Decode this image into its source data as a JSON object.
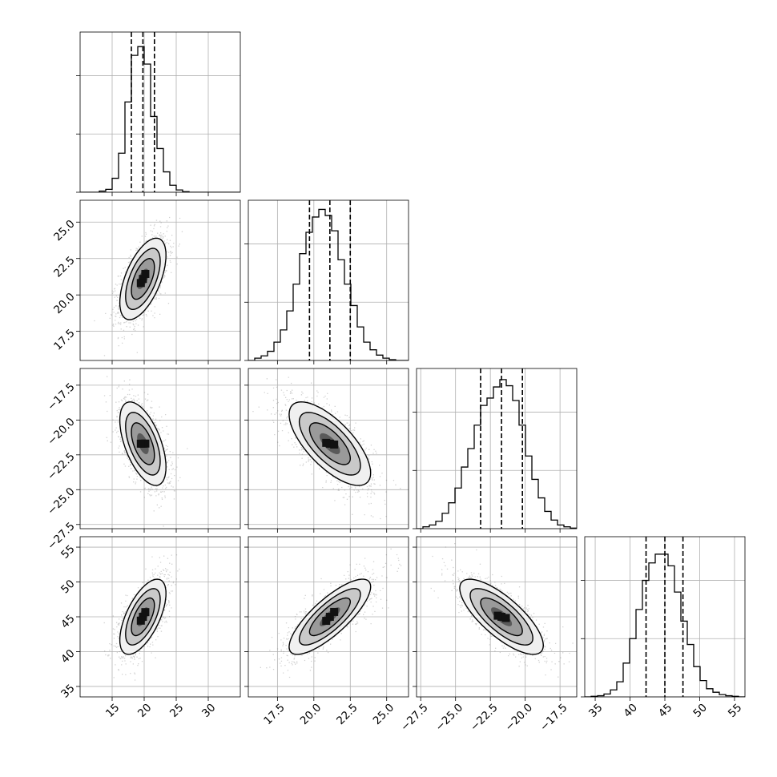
{
  "chart_data": {
    "type": "corner",
    "grid": true,
    "parameters": [
      {
        "id": "p1",
        "range": [
          10,
          35
        ],
        "ticks": [
          15,
          20,
          25,
          30
        ],
        "tick_labels": [
          "15",
          "20",
          "25",
          "30"
        ],
        "quantiles": [
          18.0,
          19.8,
          21.6
        ],
        "hist_bin_edges": [
          10,
          11,
          12,
          13,
          14,
          15,
          16,
          17,
          18,
          19,
          20,
          21,
          22,
          23,
          24,
          25,
          26,
          27,
          28,
          29,
          30,
          31,
          32,
          33,
          34,
          35
        ],
        "hist_counts": [
          0,
          0,
          0,
          2,
          5,
          24,
          67,
          155,
          235,
          250,
          220,
          130,
          75,
          35,
          12,
          4,
          1,
          0,
          0,
          0,
          0,
          0,
          0,
          0,
          0
        ],
        "hist_ylim": [
          0,
          275
        ]
      },
      {
        "id": "p2",
        "range": [
          15.5,
          26.5
        ],
        "ticks": [
          17.5,
          20.0,
          22.5,
          25.0
        ],
        "tick_labels": [
          "17.5",
          "20.0",
          "22.5",
          "25.0"
        ],
        "quantiles": [
          19.7,
          21.1,
          22.5
        ],
        "hist_bin_edges": [
          15.5,
          15.94,
          16.38,
          16.82,
          17.26,
          17.7,
          18.14,
          18.58,
          19.02,
          19.46,
          19.9,
          20.34,
          20.78,
          21.22,
          21.66,
          22.1,
          22.54,
          22.98,
          23.42,
          23.86,
          24.3,
          24.74,
          25.18,
          25.62,
          26.06,
          26.5
        ],
        "hist_counts": [
          0,
          3,
          6,
          12,
          24,
          40,
          65,
          100,
          140,
          168,
          188,
          198,
          190,
          170,
          132,
          100,
          72,
          44,
          24,
          14,
          7,
          3,
          1,
          0,
          0
        ],
        "hist_ylim": [
          0,
          210
        ]
      },
      {
        "id": "p3",
        "range": [
          -27.8,
          -16.3
        ],
        "ticks": [
          -27.5,
          -25.0,
          -22.5,
          -20.0,
          -17.5
        ],
        "tick_labels": [
          "−27.5",
          "−25.0",
          "−22.5",
          "−20.0",
          "−17.5"
        ],
        "quantiles": [
          -23.2,
          -21.7,
          -20.2
        ],
        "hist_bin_edges": [
          -27.8,
          -27.34,
          -26.88,
          -26.42,
          -25.96,
          -25.5,
          -25.04,
          -24.58,
          -24.12,
          -23.66,
          -23.2,
          -22.74,
          -22.28,
          -21.82,
          -21.36,
          -20.9,
          -20.44,
          -19.98,
          -19.52,
          -19.06,
          -18.6,
          -18.14,
          -17.68,
          -17.22,
          -16.76,
          -16.3
        ],
        "hist_counts": [
          0,
          3,
          6,
          12,
          25,
          42,
          66,
          100,
          130,
          168,
          200,
          212,
          230,
          242,
          232,
          208,
          168,
          118,
          80,
          50,
          28,
          14,
          6,
          3,
          1
        ],
        "hist_ylim": [
          0,
          260
        ]
      },
      {
        "id": "p4",
        "range": [
          33.5,
          56.5
        ],
        "ticks": [
          35,
          40,
          45,
          50,
          55
        ],
        "tick_labels": [
          "35",
          "40",
          "45",
          "50",
          "55"
        ],
        "quantiles": [
          42.3,
          45.0,
          47.6
        ],
        "hist_bin_edges": [
          33.5,
          34.42,
          35.34,
          36.26,
          37.18,
          38.1,
          39.02,
          39.94,
          40.86,
          41.78,
          42.7,
          43.62,
          44.54,
          45.46,
          46.38,
          47.3,
          48.22,
          49.14,
          50.06,
          50.98,
          51.9,
          52.82,
          53.74,
          54.66,
          55.58,
          56.5
        ],
        "hist_counts": [
          0,
          1,
          2,
          5,
          12,
          26,
          58,
          100,
          150,
          200,
          230,
          245,
          245,
          225,
          180,
          130,
          90,
          52,
          28,
          14,
          8,
          4,
          2,
          1,
          0
        ],
        "hist_ylim": [
          0,
          275
        ]
      }
    ],
    "correlations": [
      {
        "x": "p1",
        "y": "p2",
        "mean": [
          19.8,
          21.1
        ],
        "sd": [
          1.8,
          1.4
        ],
        "rho": 0.58
      },
      {
        "x": "p1",
        "y": "p3",
        "mean": [
          19.8,
          -21.7
        ],
        "sd": [
          1.8,
          1.5
        ],
        "rho": -0.56
      },
      {
        "x": "p2",
        "y": "p3",
        "mean": [
          21.1,
          -21.7
        ],
        "sd": [
          1.4,
          1.5
        ],
        "rho": -0.7
      },
      {
        "x": "p1",
        "y": "p4",
        "mean": [
          19.8,
          45.0
        ],
        "sd": [
          1.8,
          2.7
        ],
        "rho": 0.62
      },
      {
        "x": "p2",
        "y": "p4",
        "mean": [
          21.1,
          45.0
        ],
        "sd": [
          1.4,
          2.7
        ],
        "rho": 0.8
      },
      {
        "x": "p3",
        "y": "p4",
        "mean": [
          -21.7,
          45.0
        ],
        "sd": [
          1.5,
          2.7
        ],
        "rho": -0.76
      }
    ],
    "contour_sigma_levels": [
      0.5,
      1.0,
      1.5,
      2.0
    ],
    "colors": {
      "line": "#000000",
      "grid": "#b0b0b0",
      "points": "#7f7f7f"
    }
  }
}
